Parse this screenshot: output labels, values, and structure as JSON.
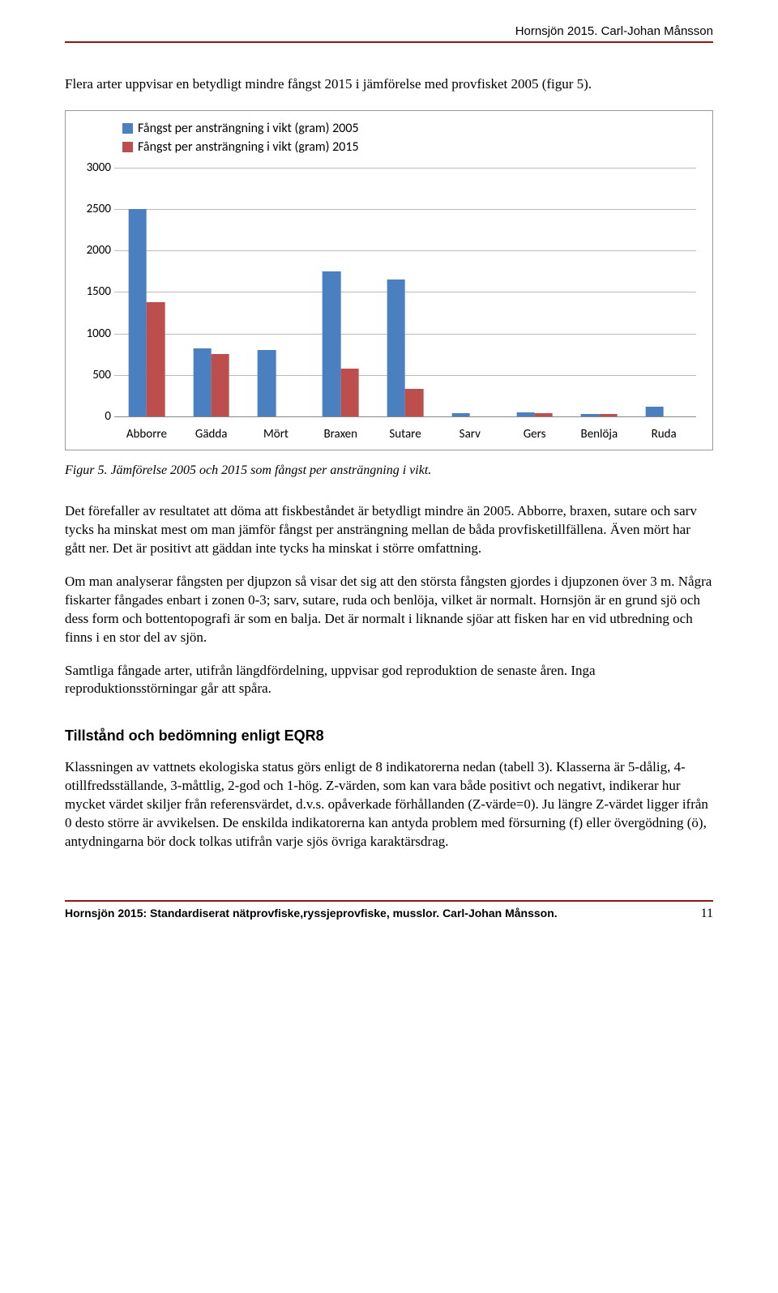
{
  "header": {
    "right": "Hornsjön 2015. Carl-Johan Månsson"
  },
  "intro": "Flera arter uppvisar en betydligt mindre fångst 2015 i jämförelse med provfisket 2005 (figur 5).",
  "chart": {
    "type": "bar-grouped",
    "legend": [
      {
        "label": "Fångst per ansträngning i vikt (gram) 2005",
        "color": "#4a7fc0"
      },
      {
        "label": "Fångst per ansträngning i vikt (gram) 2015",
        "color": "#bc4f4d"
      }
    ],
    "categories": [
      "Abborre",
      "Gädda",
      "Mört",
      "Braxen",
      "Sutare",
      "Sarv",
      "Gers",
      "Benlöja",
      "Ruda"
    ],
    "series2005": [
      2500,
      820,
      800,
      1750,
      1650,
      40,
      50,
      30,
      120
    ],
    "series2015": [
      1380,
      750,
      0,
      580,
      330,
      0,
      40,
      30,
      0
    ],
    "ylim": [
      0,
      3000
    ],
    "ytick_step": 500,
    "grid_color": "#bbbbbb",
    "background_color": "#ffffff",
    "label_fontsize": 15
  },
  "figureCaption": "Figur 5. Jämförelse 2005 och 2015 som fångst per ansträngning i vikt.",
  "para1": "Det förefaller av resultatet att döma att fiskbeståndet är betydligt mindre än 2005. Abborre, braxen, sutare och sarv tycks ha minskat mest om man jämför fångst per ansträngning mellan de båda provfisketillfällena. Även mört har gått ner. Det är positivt att gäddan inte tycks ha minskat i större omfattning.",
  "para2": "Om man analyserar fångsten per djupzon så visar det sig att den största fångsten gjordes i djupzonen över 3 m. Några fiskarter fångades enbart i zonen 0-3; sarv, sutare, ruda och benlöja, vilket är normalt. Hornsjön är en grund sjö och dess form och bottentopografi är som en balja. Det är normalt i liknande sjöar att fisken har en vid utbredning och finns i en stor del av sjön.",
  "para3": "Samtliga fångade arter, utifrån längdfördelning, uppvisar god reproduktion de senaste åren. Inga reproduktionsstörningar går att spåra.",
  "sectionHeading": "Tillstånd och bedömning enligt EQR8",
  "para4": "Klassningen av vattnets ekologiska status görs enligt de 8 indikatorerna nedan (tabell 3). Klasserna är 5-dålig, 4-otillfredsställande, 3-måttlig, 2-god och 1-hög. Z-värden, som kan vara både positivt och negativt, indikerar hur mycket värdet skiljer från referensvärdet, d.v.s. opåverkade förhållanden (Z-värde=0). Ju längre Z-värdet ligger ifrån 0 desto större är avvikelsen. De enskilda indikatorerna kan antyda problem med försurning (f) eller övergödning (ö), antydningarna bör dock tolkas utifrån varje sjös övriga karaktärsdrag.",
  "footer": {
    "left": "Hornsjön 2015: Standardiserat nätprovfiske,ryssjeprovfiske, musslor. Carl-Johan Månsson.",
    "page": "11"
  }
}
